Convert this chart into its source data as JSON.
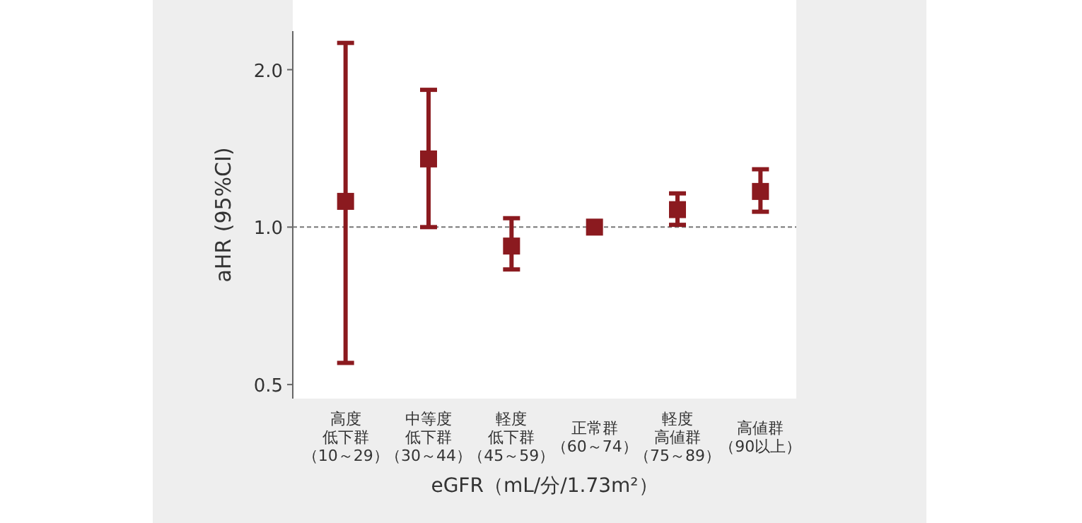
{
  "chart_data": {
    "type": "scatter",
    "xlabel": "eGFR（mL/分/1.73m²）",
    "ylabel": "aHR (95%CI)",
    "categories": [
      "高度低下群（10～29）",
      "中等度低下群（30～44）",
      "軽度低下群（45～59）",
      "正常群（60～74）",
      "軽度高値群（75～89）",
      "高値群（90以上）"
    ],
    "values": [
      1.12,
      1.35,
      0.92,
      1.0,
      1.08,
      1.17
    ],
    "errors": [
      [
        0.55,
        2.25
      ],
      [
        1.0,
        1.83
      ],
      [
        0.83,
        1.04
      ],
      null,
      [
        1.01,
        1.16
      ],
      [
        1.07,
        1.29
      ]
    ],
    "color": "#8b1a1f",
    "marker": "square",
    "log": "y",
    "ylim": [
      0.47,
      2.37
    ],
    "yticks": [
      0.5,
      {
        "value": 1,
        "label": "1.0"
      },
      {
        "value": 2,
        "label": "2.0"
      }
    ],
    "ref_lines": [
      {
        "axis": "y",
        "value": 1,
        "color": "#777777",
        "line_style": "dashed"
      }
    ],
    "grid": false
  }
}
